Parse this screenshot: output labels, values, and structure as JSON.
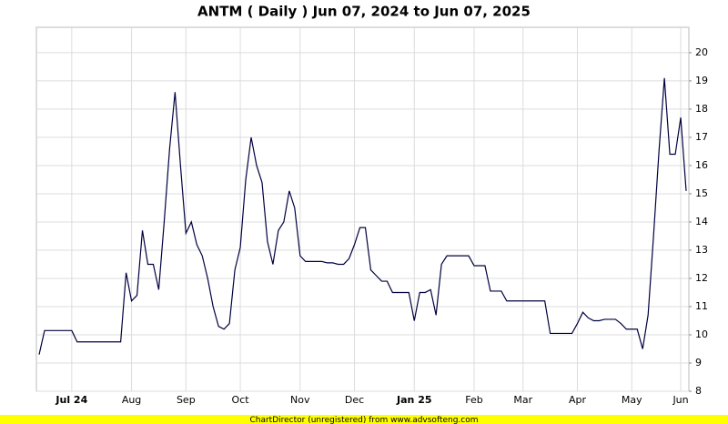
{
  "chart_data": {
    "type": "line",
    "title": "ANTM ( Daily ) Jun 07, 2024 to Jun 07, 2025",
    "footer": "ChartDirector (unregistered) from www.advsofteng.com",
    "categories": [
      null,
      null,
      null,
      null,
      null,
      null,
      "Jul 24",
      null,
      null,
      null,
      null,
      null,
      null,
      null,
      null,
      null,
      null,
      "Aug",
      null,
      null,
      null,
      null,
      null,
      null,
      null,
      null,
      null,
      "Sep",
      null,
      null,
      null,
      null,
      null,
      null,
      null,
      null,
      null,
      "Oct",
      null,
      null,
      null,
      null,
      null,
      null,
      null,
      null,
      null,
      null,
      "Nov",
      null,
      null,
      null,
      null,
      null,
      null,
      null,
      null,
      null,
      "Dec",
      null,
      null,
      null,
      null,
      null,
      null,
      null,
      null,
      null,
      null,
      "Jan 25",
      null,
      null,
      null,
      null,
      null,
      null,
      null,
      null,
      null,
      null,
      "Feb",
      null,
      null,
      null,
      null,
      null,
      null,
      null,
      null,
      "Mar",
      null,
      null,
      null,
      null,
      null,
      null,
      null,
      null,
      null,
      "Apr",
      null,
      null,
      null,
      null,
      null,
      null,
      null,
      null,
      null,
      "May",
      null,
      null,
      null,
      null,
      null,
      null,
      null,
      null,
      "Jun",
      null
    ],
    "values": [
      9.3,
      10.15,
      10.15,
      10.15,
      10.15,
      10.15,
      10.15,
      9.75,
      9.75,
      9.75,
      9.75,
      9.75,
      9.75,
      9.75,
      9.75,
      9.75,
      12.2,
      11.2,
      11.4,
      13.7,
      12.5,
      12.5,
      11.6,
      14.0,
      16.6,
      18.6,
      16.0,
      13.6,
      14.0,
      13.2,
      12.8,
      12.0,
      11.0,
      10.3,
      10.2,
      10.4,
      12.3,
      13.1,
      15.5,
      17.0,
      16.0,
      15.4,
      13.3,
      12.5,
      13.7,
      14.0,
      15.1,
      14.5,
      12.8,
      12.6,
      12.6,
      12.6,
      12.6,
      12.55,
      12.55,
      12.5,
      12.5,
      12.7,
      13.2,
      13.8,
      13.8,
      12.3,
      12.1,
      11.9,
      11.9,
      11.5,
      11.5,
      11.5,
      11.5,
      10.5,
      11.5,
      11.5,
      11.6,
      10.7,
      12.5,
      12.8,
      12.8,
      12.8,
      12.8,
      12.8,
      12.45,
      12.45,
      12.45,
      11.55,
      11.55,
      11.55,
      11.2,
      11.2,
      11.2,
      11.2,
      11.2,
      11.2,
      11.2,
      11.2,
      10.05,
      10.05,
      10.05,
      10.05,
      10.05,
      10.4,
      10.8,
      10.6,
      10.5,
      10.5,
      10.55,
      10.55,
      10.55,
      10.4,
      10.2,
      10.2,
      10.2,
      9.5,
      10.7,
      13.5,
      16.5,
      19.1,
      16.4,
      16.4,
      17.7,
      15.1
    ],
    "color": "#000040",
    "ylim": [
      8,
      20.9
    ],
    "yticks": [
      8,
      9,
      10,
      11,
      12,
      13,
      14,
      15,
      16,
      17,
      18,
      19,
      20
    ],
    "grid": true
  }
}
